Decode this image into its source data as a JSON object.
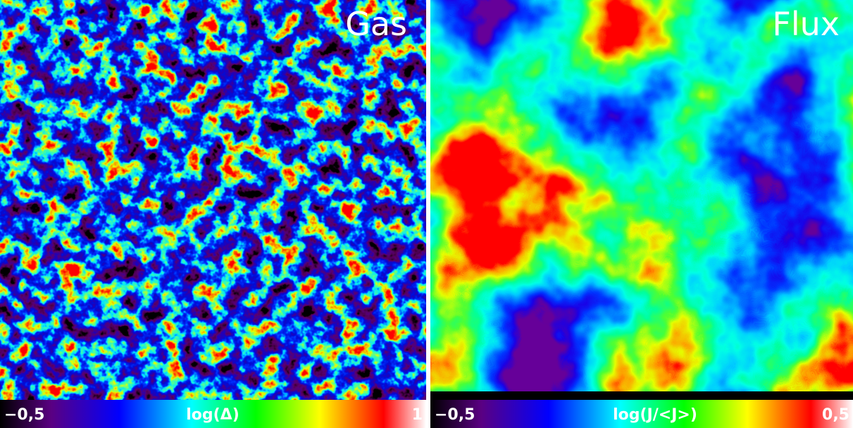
{
  "panels": [
    {
      "title": "Gas",
      "colorbar": {
        "min_label": "−0,5",
        "label": "log(Δ)",
        "max_label": "1"
      }
    },
    {
      "title": "Flux",
      "colorbar": {
        "min_label": "−0,5",
        "label": "log(J/<J>)",
        "max_label": "0,5"
      }
    }
  ]
}
